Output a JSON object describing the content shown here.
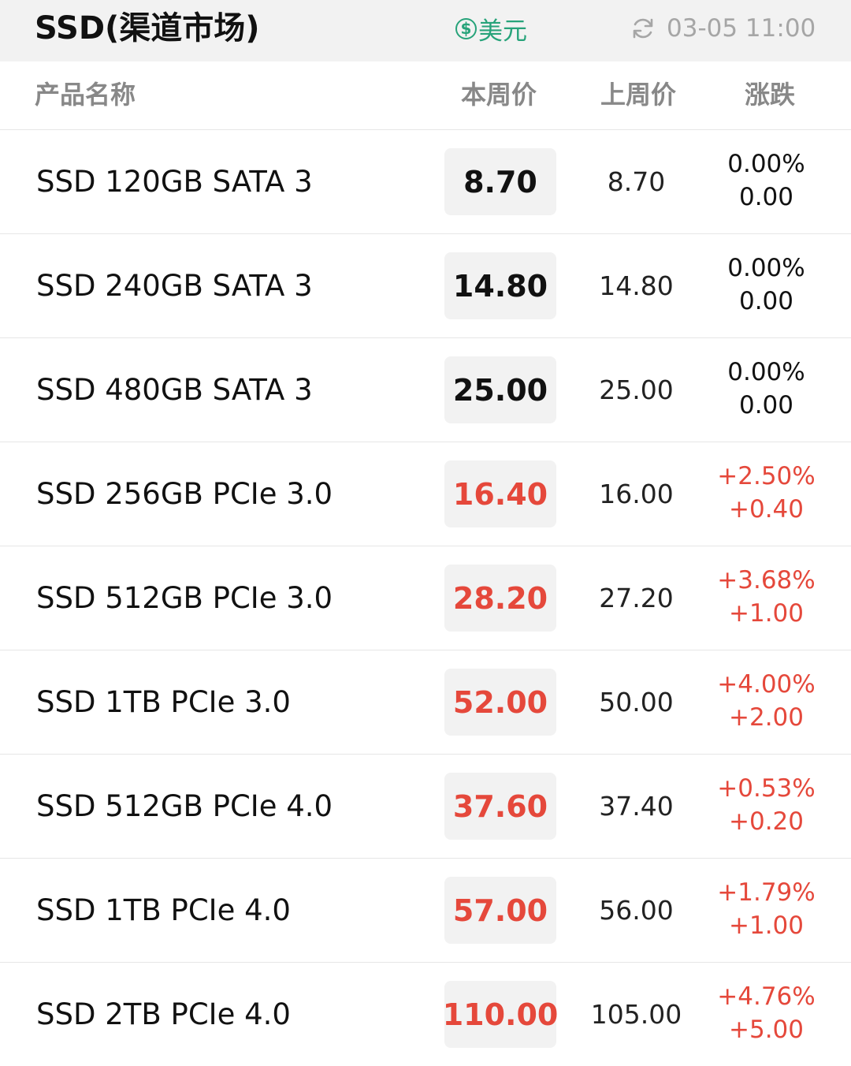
{
  "header": {
    "title": "SSD(渠道市场)",
    "currency_icon": "dollar-circle-icon",
    "currency_label": "美元",
    "refresh_icon": "refresh-icon",
    "update_time": "03-05 11:00"
  },
  "columns": {
    "name": "产品名称",
    "current": "本周价",
    "previous": "上周价",
    "change": "涨跌"
  },
  "colors": {
    "up": "#e5483b",
    "flat": "#111111",
    "accent": "#27a37a"
  },
  "rows": [
    {
      "name": "SSD 120GB SATA 3",
      "current": "8.70",
      "previous": "8.70",
      "change_pct": "0.00%",
      "change_abs": "0.00",
      "trend": "flat"
    },
    {
      "name": "SSD 240GB SATA 3",
      "current": "14.80",
      "previous": "14.80",
      "change_pct": "0.00%",
      "change_abs": "0.00",
      "trend": "flat"
    },
    {
      "name": "SSD 480GB SATA 3",
      "current": "25.00",
      "previous": "25.00",
      "change_pct": "0.00%",
      "change_abs": "0.00",
      "trend": "flat"
    },
    {
      "name": "SSD 256GB PCIe 3.0",
      "current": "16.40",
      "previous": "16.00",
      "change_pct": "+2.50%",
      "change_abs": "+0.40",
      "trend": "up"
    },
    {
      "name": "SSD 512GB PCIe 3.0",
      "current": "28.20",
      "previous": "27.20",
      "change_pct": "+3.68%",
      "change_abs": "+1.00",
      "trend": "up"
    },
    {
      "name": "SSD 1TB PCIe 3.0",
      "current": "52.00",
      "previous": "50.00",
      "change_pct": "+4.00%",
      "change_abs": "+2.00",
      "trend": "up"
    },
    {
      "name": "SSD 512GB PCIe 4.0",
      "current": "37.60",
      "previous": "37.40",
      "change_pct": "+0.53%",
      "change_abs": "+0.20",
      "trend": "up"
    },
    {
      "name": "SSD 1TB PCIe 4.0",
      "current": "57.00",
      "previous": "56.00",
      "change_pct": "+1.79%",
      "change_abs": "+1.00",
      "trend": "up"
    },
    {
      "name": "SSD 2TB PCIe 4.0",
      "current": "110.00",
      "previous": "105.00",
      "change_pct": "+4.76%",
      "change_abs": "+5.00",
      "trend": "up"
    }
  ]
}
